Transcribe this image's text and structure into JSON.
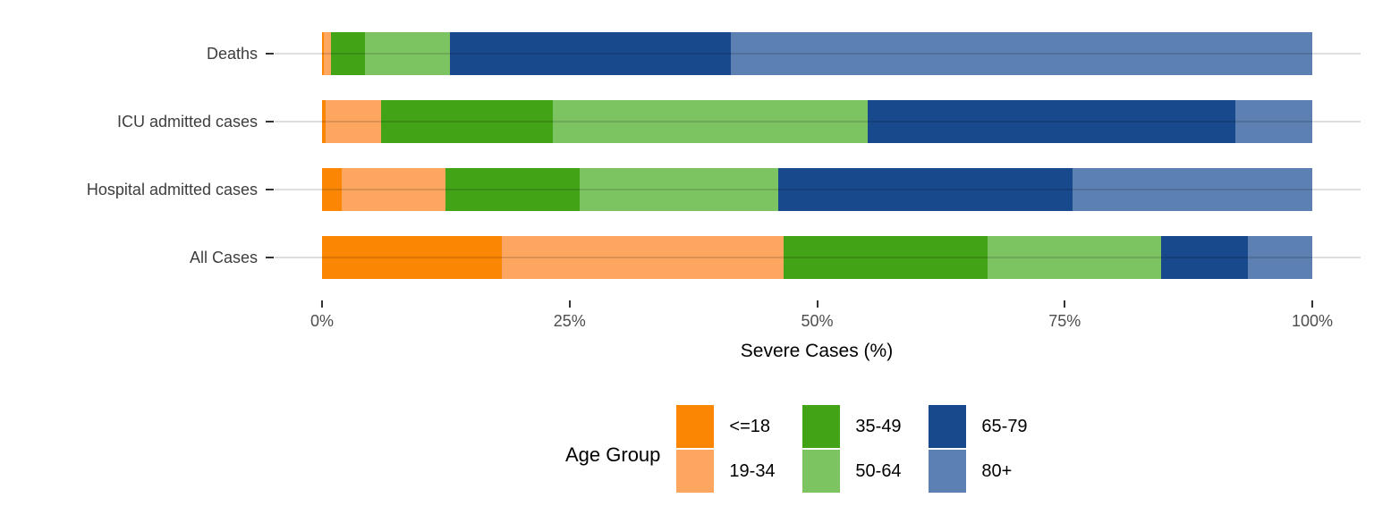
{
  "chart_data": {
    "type": "bar",
    "orientation": "horizontal",
    "stacked": true,
    "title": "",
    "xlabel": "Severe Cases (%)",
    "ylabel": "",
    "xlim": [
      0,
      100
    ],
    "x_tick_values": [
      0,
      25,
      50,
      75,
      100
    ],
    "x_tick_labels": [
      "0%",
      "25%",
      "50%",
      "75%",
      "100%"
    ],
    "categories": [
      "Deaths",
      "ICU admitted cases",
      "Hospital admitted cases",
      "All Cases"
    ],
    "series": [
      {
        "name": "<=18",
        "color": "#FB8604",
        "values": [
          0.2,
          0.4,
          2.0,
          18.2
        ]
      },
      {
        "name": "19-34",
        "color": "#FDA65F",
        "values": [
          0.7,
          5.6,
          10.5,
          28.4
        ]
      },
      {
        "name": "35-49",
        "color": "#43A317",
        "values": [
          3.4,
          17.3,
          13.5,
          20.6
        ]
      },
      {
        "name": "50-64",
        "color": "#7CC462",
        "values": [
          8.6,
          31.8,
          20.1,
          17.5
        ]
      },
      {
        "name": "65-79",
        "color": "#17498C",
        "values": [
          28.4,
          37.1,
          29.7,
          8.8
        ]
      },
      {
        "name": "80+",
        "color": "#5C80B2",
        "values": [
          58.7,
          7.8,
          24.2,
          6.5
        ]
      }
    ],
    "legend": {
      "title": "Age Group",
      "position": "bottom",
      "columns": [
        [
          "<=18",
          "19-34"
        ],
        [
          "35-49",
          "50-64"
        ],
        [
          "65-79",
          "80+"
        ]
      ]
    },
    "grid": true,
    "panel_background": "#ffffff",
    "gridline_color": "#d9d9d9",
    "axis_text_color": "#4d4d4d",
    "tick_color": "#333333"
  }
}
